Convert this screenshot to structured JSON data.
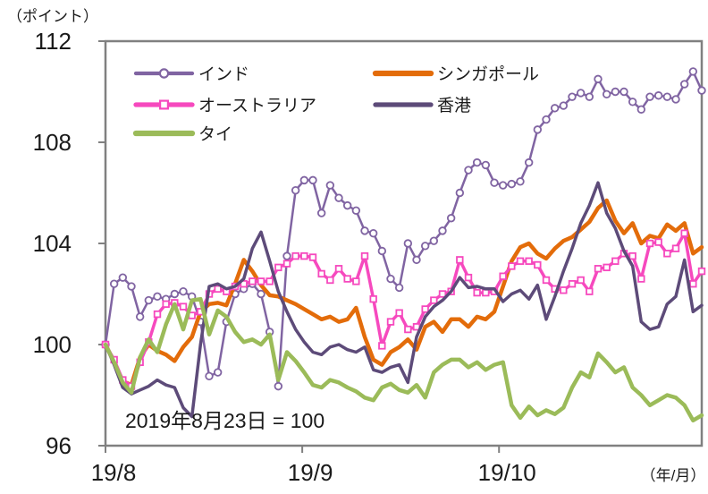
{
  "chart_data": {
    "type": "line",
    "title": "",
    "y_axis_unit": "（ポイント）",
    "x_axis_unit": "（年/月）",
    "note": "2019年8月23日 = 100",
    "ylim": [
      96,
      112
    ],
    "y_ticks": [
      112,
      108,
      104,
      100,
      96
    ],
    "x_ticks": [
      {
        "label": "19/8",
        "frac": 0.0
      },
      {
        "label": "19/9",
        "frac": 0.33
      },
      {
        "label": "19/10",
        "frac": 0.66
      }
    ],
    "axis_color": "#808080",
    "text_color": "#1A1A1A",
    "legend_position": "top-inside",
    "grid": false,
    "series": [
      {
        "name": "インド",
        "slug": "india",
        "color": "#8064A2",
        "marker": "circle",
        "line_width": 2.5,
        "values": [
          100.0,
          102.4,
          102.65,
          102.3,
          101.1,
          101.75,
          101.9,
          101.8,
          102.0,
          102.1,
          101.9,
          100.9,
          98.75,
          98.9,
          100.9,
          102.0,
          102.2,
          102.4,
          102.0,
          100.5,
          98.35,
          103.5,
          106.1,
          106.5,
          106.5,
          105.2,
          106.3,
          105.8,
          105.5,
          105.3,
          104.5,
          104.4,
          103.7,
          102.6,
          102.25,
          104.0,
          103.35,
          103.9,
          104.1,
          104.5,
          105.0,
          106.0,
          106.9,
          107.2,
          107.1,
          106.4,
          106.3,
          106.35,
          106.45,
          107.2,
          108.5,
          108.9,
          109.35,
          109.45,
          109.8,
          109.95,
          109.8,
          110.5,
          109.9,
          110.0,
          110.0,
          109.6,
          109.3,
          109.8,
          109.85,
          109.8,
          109.7,
          110.3,
          110.8,
          110.05
        ]
      },
      {
        "name": "シンガポール",
        "slug": "singapore",
        "color": "#E36C0A",
        "marker": "none",
        "line_width": 4.5,
        "values": [
          100.0,
          99.3,
          98.55,
          98.4,
          99.5,
          100.0,
          99.75,
          99.6,
          99.35,
          99.9,
          100.3,
          101.3,
          101.6,
          101.65,
          101.55,
          102.4,
          103.35,
          102.9,
          102.35,
          101.95,
          101.9,
          101.75,
          101.6,
          101.4,
          101.2,
          101.0,
          101.1,
          100.9,
          101.0,
          101.45,
          100.3,
          99.4,
          99.2,
          99.7,
          99.9,
          100.2,
          99.8,
          100.7,
          100.9,
          100.5,
          101.0,
          101.0,
          100.7,
          101.1,
          101.0,
          101.3,
          102.3,
          103.3,
          103.85,
          104.0,
          103.6,
          103.4,
          103.8,
          104.1,
          104.25,
          104.55,
          104.85,
          105.4,
          105.7,
          104.9,
          104.4,
          104.8,
          104.0,
          104.3,
          104.2,
          104.75,
          104.5,
          104.8,
          103.6,
          103.85
        ]
      },
      {
        "name": "オーストラリア",
        "slug": "australia",
        "color": "#F649BE",
        "marker": "square",
        "line_width": 3.5,
        "values": [
          100.0,
          99.4,
          98.6,
          98.35,
          99.3,
          100.1,
          101.2,
          101.6,
          101.65,
          101.5,
          101.15,
          101.3,
          102.0,
          102.2,
          102.1,
          102.3,
          102.4,
          102.5,
          102.5,
          102.5,
          103.05,
          103.2,
          103.5,
          103.5,
          103.45,
          102.8,
          102.55,
          103.0,
          102.6,
          102.5,
          103.5,
          101.8,
          99.95,
          100.9,
          101.25,
          100.6,
          100.7,
          101.4,
          101.75,
          102.0,
          102.1,
          103.35,
          102.65,
          102.05,
          102.05,
          102.1,
          102.7,
          103.1,
          103.3,
          103.3,
          103.15,
          102.55,
          102.2,
          102.15,
          102.4,
          102.55,
          102.1,
          103.0,
          103.05,
          103.3,
          103.6,
          103.5,
          102.6,
          104.0,
          104.05,
          103.6,
          103.8,
          104.4,
          102.4,
          102.9
        ]
      },
      {
        "name": "香港",
        "slug": "hongkong",
        "color": "#5D4B79",
        "marker": "none",
        "line_width": 3.5,
        "values": [
          100.0,
          99.2,
          98.3,
          98.05,
          98.2,
          98.35,
          98.6,
          98.4,
          98.3,
          97.5,
          97.15,
          100.0,
          102.3,
          102.4,
          102.2,
          102.3,
          102.6,
          103.8,
          104.45,
          103.3,
          102.1,
          101.3,
          100.6,
          100.1,
          99.7,
          99.6,
          99.9,
          100.0,
          99.8,
          99.7,
          99.9,
          99.0,
          98.9,
          99.1,
          99.2,
          98.5,
          100.3,
          101.1,
          101.5,
          101.75,
          102.1,
          102.65,
          102.25,
          102.3,
          102.2,
          102.2,
          101.7,
          102.0,
          102.15,
          101.8,
          102.35,
          101.0,
          101.9,
          102.9,
          103.8,
          104.8,
          105.5,
          106.4,
          105.2,
          104.6,
          103.7,
          103.1,
          100.9,
          100.6,
          100.7,
          101.6,
          101.9,
          103.35,
          101.3,
          101.55
        ]
      },
      {
        "name": "タイ",
        "slug": "thailand",
        "color": "#9BBB59",
        "marker": "none",
        "line_width": 4.5,
        "values": [
          100.0,
          99.3,
          98.5,
          98.1,
          99.5,
          100.2,
          99.7,
          100.8,
          101.6,
          100.6,
          101.75,
          101.8,
          100.4,
          101.35,
          101.1,
          100.5,
          100.1,
          100.2,
          100.0,
          100.4,
          98.6,
          99.7,
          99.35,
          98.9,
          98.4,
          98.3,
          98.6,
          98.5,
          98.3,
          98.15,
          97.9,
          97.8,
          98.3,
          98.45,
          98.2,
          98.1,
          98.4,
          97.9,
          98.9,
          99.2,
          99.4,
          99.4,
          99.1,
          99.3,
          99.0,
          99.2,
          99.3,
          97.6,
          97.1,
          97.55,
          97.2,
          97.4,
          97.25,
          97.5,
          98.3,
          98.9,
          98.7,
          99.65,
          99.3,
          98.9,
          99.1,
          98.3,
          98.0,
          97.6,
          97.8,
          98.0,
          97.9,
          97.6,
          97.0,
          97.2
        ]
      }
    ]
  }
}
